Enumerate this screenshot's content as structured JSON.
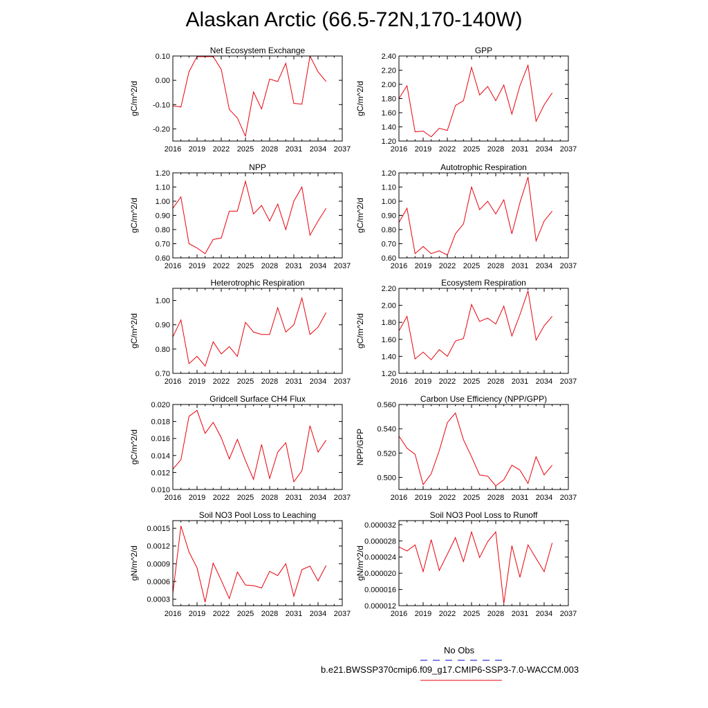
{
  "figure": {
    "title": "Alaskan Arctic (66.5-72N,170-140W)"
  },
  "legend": {
    "obs_label": "No Obs",
    "obs_color": "#0000cc",
    "model_label": "b.e21.BWSSP370cmip6.f09_g17.CMIP6-SSP3-7.0-WACCM.003",
    "model_color": "#e8000b"
  },
  "chart_data": [
    {
      "type": "line",
      "title": "Net Ecosystem Exchange",
      "ylabel": "gC/m^2/d",
      "xlim": [
        2016,
        2037
      ],
      "xticks": [
        2016,
        2019,
        2022,
        2025,
        2028,
        2031,
        2034,
        2037
      ],
      "xtick_labels": [
        "2016",
        "2019",
        "2022",
        "2025",
        "2028",
        "2031",
        "2034",
        "2037"
      ],
      "ylim": [
        -0.25,
        0.1
      ],
      "yticks": [
        -0.2,
        -0.1,
        0.0,
        0.1
      ],
      "ytick_labels": [
        "-0.20",
        "-0.10",
        "0.00",
        "0.10"
      ],
      "x": [
        2015,
        2016,
        2017,
        2018,
        2019,
        2020,
        2021,
        2022,
        2023,
        2024,
        2025,
        2026,
        2027,
        2028,
        2029,
        2030,
        2031,
        2032,
        2033,
        2034,
        2035
      ],
      "series": [
        {
          "values": [
            -0.09,
            -0.105,
            -0.11,
            0.035,
            0.098,
            0.097,
            0.098,
            0.045,
            -0.12,
            -0.155,
            -0.23,
            -0.048,
            -0.118,
            0.005,
            -0.005,
            0.07,
            -0.095,
            -0.098,
            0.1,
            0.035,
            -0.005
          ],
          "color": "#e8000b"
        }
      ]
    },
    {
      "type": "line",
      "title": "GPP",
      "ylabel": "gC/m^2/d",
      "xlim": [
        2016,
        2037
      ],
      "xticks": [
        2016,
        2019,
        2022,
        2025,
        2028,
        2031,
        2034,
        2037
      ],
      "xtick_labels": [
        "2016",
        "2019",
        "2022",
        "2025",
        "2028",
        "2031",
        "2034",
        "2037"
      ],
      "ylim": [
        1.2,
        2.4
      ],
      "yticks": [
        1.2,
        1.4,
        1.6,
        1.8,
        2.0,
        2.2,
        2.4
      ],
      "ytick_labels": [
        "1.20",
        "1.40",
        "1.60",
        "1.80",
        "2.00",
        "2.20",
        "2.40"
      ],
      "x": [
        2015,
        2016,
        2017,
        2018,
        2019,
        2020,
        2021,
        2022,
        2023,
        2024,
        2025,
        2026,
        2027,
        2028,
        2029,
        2030,
        2031,
        2032,
        2033,
        2034,
        2035
      ],
      "series": [
        {
          "values": [
            1.76,
            1.8,
            1.98,
            1.33,
            1.34,
            1.26,
            1.38,
            1.35,
            1.7,
            1.77,
            2.24,
            1.85,
            1.97,
            1.77,
            1.99,
            1.58,
            1.98,
            2.27,
            1.48,
            1.71,
            1.88
          ],
          "color": "#e8000b"
        }
      ]
    },
    {
      "type": "line",
      "title": "NPP",
      "ylabel": "gC/m^2/d",
      "xlim": [
        2016,
        2037
      ],
      "xticks": [
        2016,
        2019,
        2022,
        2025,
        2028,
        2031,
        2034,
        2037
      ],
      "xtick_labels": [
        "2016",
        "2019",
        "2022",
        "2025",
        "2028",
        "2031",
        "2034",
        "2037"
      ],
      "ylim": [
        0.6,
        1.2
      ],
      "yticks": [
        0.6,
        0.7,
        0.8,
        0.9,
        1.0,
        1.1,
        1.2
      ],
      "ytick_labels": [
        "0.60",
        "0.70",
        "0.80",
        "0.90",
        "1.00",
        "1.10",
        "1.20"
      ],
      "x": [
        2015,
        2016,
        2017,
        2018,
        2019,
        2020,
        2021,
        2022,
        2023,
        2024,
        2025,
        2026,
        2027,
        2028,
        2029,
        2030,
        2031,
        2032,
        2033,
        2034,
        2035
      ],
      "series": [
        {
          "values": [
            0.92,
            0.95,
            1.03,
            0.7,
            0.67,
            0.63,
            0.73,
            0.74,
            0.93,
            0.93,
            1.14,
            0.91,
            0.97,
            0.86,
            0.98,
            0.8,
            1.0,
            1.1,
            0.76,
            0.86,
            0.95
          ],
          "color": "#e8000b"
        }
      ]
    },
    {
      "type": "line",
      "title": "Autotrophic Respiration",
      "ylabel": "gC/m^2/d",
      "xlim": [
        2016,
        2037
      ],
      "xticks": [
        2016,
        2019,
        2022,
        2025,
        2028,
        2031,
        2034,
        2037
      ],
      "xtick_labels": [
        "2016",
        "2019",
        "2022",
        "2025",
        "2028",
        "2031",
        "2034",
        "2037"
      ],
      "ylim": [
        0.6,
        1.2
      ],
      "yticks": [
        0.6,
        0.7,
        0.8,
        0.9,
        1.0,
        1.1,
        1.2
      ],
      "ytick_labels": [
        "0.60",
        "0.70",
        "0.80",
        "0.90",
        "1.00",
        "1.10",
        "1.20"
      ],
      "x": [
        2015,
        2016,
        2017,
        2018,
        2019,
        2020,
        2021,
        2022,
        2023,
        2024,
        2025,
        2026,
        2027,
        2028,
        2029,
        2030,
        2031,
        2032,
        2033,
        2034,
        2035
      ],
      "series": [
        {
          "values": [
            0.82,
            0.85,
            0.95,
            0.63,
            0.68,
            0.63,
            0.65,
            0.62,
            0.77,
            0.84,
            1.1,
            0.94,
            1.0,
            0.91,
            1.01,
            0.77,
            0.99,
            1.17,
            0.72,
            0.86,
            0.93
          ],
          "color": "#e8000b"
        }
      ]
    },
    {
      "type": "line",
      "title": "Heterotrophic Respiration",
      "ylabel": "gC/m^2/d",
      "xlim": [
        2016,
        2037
      ],
      "xticks": [
        2016,
        2019,
        2022,
        2025,
        2028,
        2031,
        2034,
        2037
      ],
      "xtick_labels": [
        "2016",
        "2019",
        "2022",
        "2025",
        "2028",
        "2031",
        "2034",
        "2037"
      ],
      "ylim": [
        0.7,
        1.05
      ],
      "yticks": [
        0.7,
        0.8,
        0.9,
        1.0
      ],
      "ytick_labels": [
        "0.70",
        "0.80",
        "0.90",
        "1.00"
      ],
      "x": [
        2015,
        2016,
        2017,
        2018,
        2019,
        2020,
        2021,
        2022,
        2023,
        2024,
        2025,
        2026,
        2027,
        2028,
        2029,
        2030,
        2031,
        2032,
        2033,
        2034,
        2035
      ],
      "series": [
        {
          "values": [
            0.83,
            0.85,
            0.92,
            0.74,
            0.77,
            0.73,
            0.83,
            0.78,
            0.81,
            0.77,
            0.91,
            0.87,
            0.86,
            0.86,
            0.97,
            0.87,
            0.9,
            1.01,
            0.86,
            0.89,
            0.95
          ],
          "color": "#e8000b"
        }
      ]
    },
    {
      "type": "line",
      "title": "Ecosystem Respiration",
      "ylabel": "gC/m^2/d",
      "xlim": [
        2016,
        2037
      ],
      "xticks": [
        2016,
        2019,
        2022,
        2025,
        2028,
        2031,
        2034,
        2037
      ],
      "xtick_labels": [
        "2016",
        "2019",
        "2022",
        "2025",
        "2028",
        "2031",
        "2034",
        "2037"
      ],
      "ylim": [
        1.2,
        2.2
      ],
      "yticks": [
        1.2,
        1.4,
        1.6,
        1.8,
        2.0,
        2.2
      ],
      "ytick_labels": [
        "1.20",
        "1.40",
        "1.60",
        "1.80",
        "2.00",
        "2.20"
      ],
      "x": [
        2015,
        2016,
        2017,
        2018,
        2019,
        2020,
        2021,
        2022,
        2023,
        2024,
        2025,
        2026,
        2027,
        2028,
        2029,
        2030,
        2031,
        2032,
        2033,
        2034,
        2035
      ],
      "series": [
        {
          "values": [
            1.65,
            1.7,
            1.87,
            1.37,
            1.45,
            1.36,
            1.48,
            1.4,
            1.58,
            1.61,
            2.01,
            1.81,
            1.85,
            1.78,
            1.99,
            1.64,
            1.89,
            2.17,
            1.59,
            1.76,
            1.87
          ],
          "color": "#e8000b"
        }
      ]
    },
    {
      "type": "line",
      "title": "Gridcell Surface CH4 Flux",
      "ylabel": "gC/m^2/d",
      "xlim": [
        2016,
        2037
      ],
      "xticks": [
        2016,
        2019,
        2022,
        2025,
        2028,
        2031,
        2034,
        2037
      ],
      "xtick_labels": [
        "2016",
        "2019",
        "2022",
        "2025",
        "2028",
        "2031",
        "2034",
        "2037"
      ],
      "ylim": [
        0.01,
        0.02
      ],
      "yticks": [
        0.01,
        0.012,
        0.014,
        0.016,
        0.018,
        0.02
      ],
      "ytick_labels": [
        "0.010",
        "0.012",
        "0.014",
        "0.016",
        "0.018",
        "0.020"
      ],
      "x": [
        2015,
        2016,
        2017,
        2018,
        2019,
        2020,
        2021,
        2022,
        2023,
        2024,
        2025,
        2026,
        2027,
        2028,
        2029,
        2030,
        2031,
        2032,
        2033,
        2034,
        2035
      ],
      "series": [
        {
          "values": [
            0.0118,
            0.0124,
            0.0135,
            0.0186,
            0.0193,
            0.0166,
            0.0179,
            0.0161,
            0.0136,
            0.0159,
            0.0134,
            0.0112,
            0.0153,
            0.0113,
            0.0144,
            0.0155,
            0.0109,
            0.0122,
            0.0175,
            0.0144,
            0.0158
          ],
          "color": "#e8000b"
        }
      ]
    },
    {
      "type": "line",
      "title": "Carbon Use Efficiency (NPP/GPP)",
      "ylabel": "NPP/GPP",
      "xlim": [
        2016,
        2037
      ],
      "xticks": [
        2016,
        2019,
        2022,
        2025,
        2028,
        2031,
        2034,
        2037
      ],
      "xtick_labels": [
        "2016",
        "2019",
        "2022",
        "2025",
        "2028",
        "2031",
        "2034",
        "2037"
      ],
      "ylim": [
        0.49,
        0.56
      ],
      "yticks": [
        0.5,
        0.52,
        0.54,
        0.56
      ],
      "ytick_labels": [
        "0.500",
        "0.520",
        "0.540",
        "0.560"
      ],
      "x": [
        2015,
        2016,
        2017,
        2018,
        2019,
        2020,
        2021,
        2022,
        2023,
        2024,
        2025,
        2026,
        2027,
        2028,
        2029,
        2030,
        2031,
        2032,
        2033,
        2034,
        2035
      ],
      "series": [
        {
          "values": [
            0.538,
            0.534,
            0.524,
            0.519,
            0.494,
            0.503,
            0.522,
            0.545,
            0.553,
            0.531,
            0.517,
            0.502,
            0.501,
            0.493,
            0.498,
            0.51,
            0.506,
            0.495,
            0.517,
            0.502,
            0.51
          ],
          "color": "#e8000b"
        }
      ]
    },
    {
      "type": "line",
      "title": "Soil NO3 Pool Loss to Leaching",
      "ylabel": "gN/m^2/d",
      "xlim": [
        2016,
        2037
      ],
      "xticks": [
        2016,
        2019,
        2022,
        2025,
        2028,
        2031,
        2034,
        2037
      ],
      "xtick_labels": [
        "2016",
        "2019",
        "2022",
        "2025",
        "2028",
        "2031",
        "2034",
        "2037"
      ],
      "ylim": [
        0.00019,
        0.00163
      ],
      "yticks": [
        0.0003,
        0.0006,
        0.0009,
        0.0012,
        0.0015
      ],
      "ytick_labels": [
        "0.0003",
        "0.0006",
        "0.0009",
        "0.0012",
        "0.0015"
      ],
      "x": [
        2015,
        2016,
        2017,
        2018,
        2019,
        2020,
        2021,
        2022,
        2023,
        2024,
        2025,
        2026,
        2027,
        2028,
        2029,
        2030,
        2031,
        2032,
        2033,
        2034,
        2035
      ],
      "series": [
        {
          "values": [
            0.00085,
            0.0004,
            0.00154,
            0.0011,
            0.00083,
            0.00025,
            0.00091,
            0.00062,
            0.00031,
            0.00076,
            0.00054,
            0.00053,
            0.00049,
            0.00077,
            0.0007,
            0.0009,
            0.00035,
            0.0008,
            0.00086,
            0.00061,
            0.00087
          ],
          "color": "#e8000b"
        }
      ]
    },
    {
      "type": "line",
      "title": "Soil NO3 Pool Loss to Runoff",
      "ylabel": "gN/m^2/d",
      "xlim": [
        2016,
        2037
      ],
      "xticks": [
        2016,
        2019,
        2022,
        2025,
        2028,
        2031,
        2034,
        2037
      ],
      "xtick_labels": [
        "2016",
        "2019",
        "2022",
        "2025",
        "2028",
        "2031",
        "2034",
        "2037"
      ],
      "ylim": [
        1.2e-05,
        3.3e-05
      ],
      "yticks": [
        1.2e-05,
        1.6e-05,
        2e-05,
        2.4e-05,
        2.8e-05,
        3.2e-05
      ],
      "ytick_labels": [
        "0.000012",
        "0.000016",
        "0.000020",
        "0.000024",
        "0.000028",
        "0.000032"
      ],
      "x": [
        2015,
        2016,
        2017,
        2018,
        2019,
        2020,
        2021,
        2022,
        2023,
        2024,
        2025,
        2026,
        2027,
        2028,
        2029,
        2030,
        2031,
        2032,
        2033,
        2034,
        2035
      ],
      "series": [
        {
          "values": [
            2.55e-05,
            2.65e-05,
            2.55e-05,
            2.7e-05,
            2.04e-05,
            2.83e-05,
            2.07e-05,
            2.47e-05,
            2.88e-05,
            2.29e-05,
            3.02e-05,
            2.39e-05,
            2.78e-05,
            3.02e-05,
            1.25e-05,
            2.68e-05,
            1.9e-05,
            2.7e-05,
            2.37e-05,
            2.04e-05,
            2.75e-05
          ],
          "color": "#e8000b"
        }
      ]
    }
  ]
}
